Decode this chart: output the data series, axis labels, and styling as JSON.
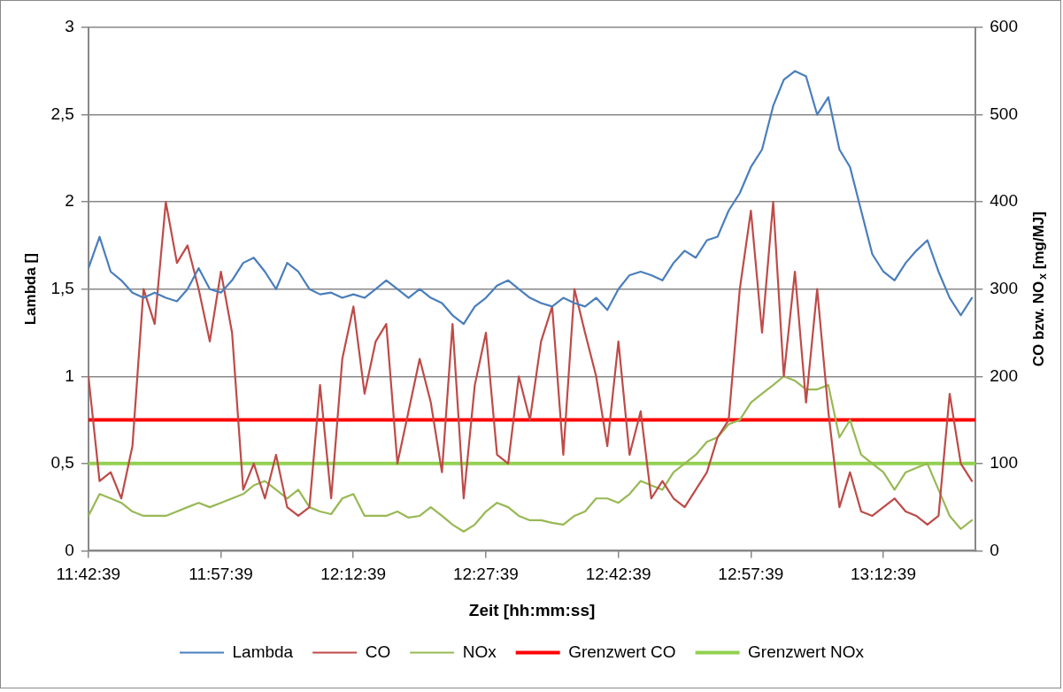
{
  "chart_data": {
    "type": "line",
    "xlabel": "Zeit [hh:mm:ss]",
    "ylabel": "Lambda []",
    "y2label": "CO bzw. NO$_{x}$ [mg/MJ]",
    "x": [
      11.711,
      11.732,
      11.753,
      11.773,
      11.794,
      11.815,
      11.836,
      11.857,
      11.878,
      11.898,
      11.919,
      11.94,
      11.961,
      11.982,
      12.003,
      12.023,
      12.044,
      12.065,
      12.086,
      12.107,
      12.128,
      12.148,
      12.169,
      12.19,
      12.211,
      12.232,
      12.253,
      12.273,
      12.294,
      12.315,
      12.336,
      12.357,
      12.378,
      12.398,
      12.419,
      12.44,
      12.461,
      12.482,
      12.503,
      12.523,
      12.544,
      12.565,
      12.586,
      12.607,
      12.628,
      12.648,
      12.669,
      12.69,
      12.711,
      12.732,
      12.753,
      12.773,
      12.794,
      12.815,
      12.836,
      12.857,
      12.878,
      12.898,
      12.919,
      12.94,
      12.961,
      12.982,
      13.003,
      13.023,
      13.044,
      13.065,
      13.086,
      13.107,
      13.128,
      13.148,
      13.169,
      13.19,
      13.211,
      13.232,
      13.253,
      13.273,
      13.294,
      13.315,
      13.336,
      13.357,
      13.378
    ],
    "series": [
      {
        "name": "Lambda",
        "color": "#4a7ebb",
        "values": [
          1.62,
          1.8,
          1.6,
          1.55,
          1.48,
          1.45,
          1.48,
          1.45,
          1.43,
          1.5,
          1.62,
          1.5,
          1.48,
          1.55,
          1.65,
          1.68,
          1.6,
          1.5,
          1.65,
          1.6,
          1.5,
          1.47,
          1.48,
          1.45,
          1.47,
          1.45,
          1.5,
          1.55,
          1.5,
          1.45,
          1.5,
          1.45,
          1.42,
          1.35,
          1.3,
          1.4,
          1.45,
          1.52,
          1.55,
          1.5,
          1.45,
          1.42,
          1.4,
          1.45,
          1.42,
          1.4,
          1.45,
          1.38,
          1.5,
          1.58,
          1.6,
          1.58,
          1.55,
          1.65,
          1.72,
          1.68,
          1.78,
          1.8,
          1.95,
          2.05,
          2.2,
          2.3,
          2.55,
          2.7,
          2.75,
          2.72,
          2.5,
          2.6,
          2.3,
          2.2,
          1.95,
          1.7,
          1.6,
          1.55,
          1.65,
          1.72,
          1.78,
          1.6,
          1.45,
          1.35,
          1.45
        ]
      },
      {
        "name": "CO",
        "color": "#be4b48",
        "axis": "y2",
        "values": [
          200,
          80,
          90,
          60,
          120,
          300,
          260,
          400,
          330,
          350,
          300,
          240,
          320,
          250,
          70,
          100,
          60,
          110,
          50,
          40,
          50,
          190,
          60,
          220,
          280,
          180,
          240,
          260,
          100,
          160,
          220,
          170,
          90,
          260,
          60,
          190,
          250,
          110,
          100,
          200,
          150,
          240,
          280,
          110,
          300,
          250,
          200,
          120,
          240,
          110,
          160,
          60,
          80,
          60,
          50,
          70,
          90,
          130,
          150,
          300,
          390,
          250,
          400,
          200,
          320,
          170,
          300,
          160,
          50,
          90,
          45,
          40,
          50,
          60,
          45,
          40,
          30,
          40,
          180,
          100,
          80
        ]
      },
      {
        "name": "NOx",
        "color": "#98b954",
        "axis": "y2",
        "values": [
          40,
          65,
          60,
          55,
          45,
          40,
          40,
          40,
          45,
          50,
          55,
          50,
          55,
          60,
          65,
          75,
          80,
          70,
          60,
          70,
          50,
          45,
          42,
          60,
          65,
          40,
          40,
          40,
          45,
          38,
          40,
          50,
          40,
          30,
          22,
          30,
          45,
          55,
          50,
          40,
          35,
          35,
          32,
          30,
          40,
          45,
          60,
          60,
          55,
          65,
          80,
          75,
          70,
          90,
          100,
          110,
          125,
          130,
          145,
          150,
          170,
          180,
          190,
          200,
          195,
          185,
          185,
          190,
          130,
          150,
          110,
          100,
          90,
          70,
          90,
          95,
          100,
          70,
          40,
          25,
          35
        ]
      }
    ],
    "ref_lines": [
      {
        "axis": "y2",
        "value": 150,
        "label": "Grenzwert CO",
        "color": "#ff0000"
      },
      {
        "axis": "y2",
        "value": 100,
        "label": "Grenzwert NOx",
        "color": "#92d050"
      }
    ],
    "xlim": [
      11.710833,
      13.385
    ],
    "xticks": [
      {
        "value": 11.710833,
        "label": "11:42:39"
      },
      {
        "value": 11.960833,
        "label": "11:57:39"
      },
      {
        "value": 12.210833,
        "label": "12:12:39"
      },
      {
        "value": 12.460833,
        "label": "12:27:39"
      },
      {
        "value": 12.710833,
        "label": "12:42:39"
      },
      {
        "value": 12.960833,
        "label": "12:57:39"
      },
      {
        "value": 13.210833,
        "label": "13:12:39"
      }
    ],
    "ylim": [
      0,
      3
    ],
    "yticks": [
      0,
      {
        "value": 0.5,
        "label": "0,5"
      },
      1,
      {
        "value": 1.5,
        "label": "1,5"
      },
      2,
      {
        "value": 2.5,
        "label": "2,5"
      },
      3
    ],
    "y2lim": [
      0,
      600
    ],
    "y2ticks": [
      0,
      100,
      200,
      300,
      400,
      500,
      600
    ],
    "grid": "y",
    "legend": "bottom"
  }
}
